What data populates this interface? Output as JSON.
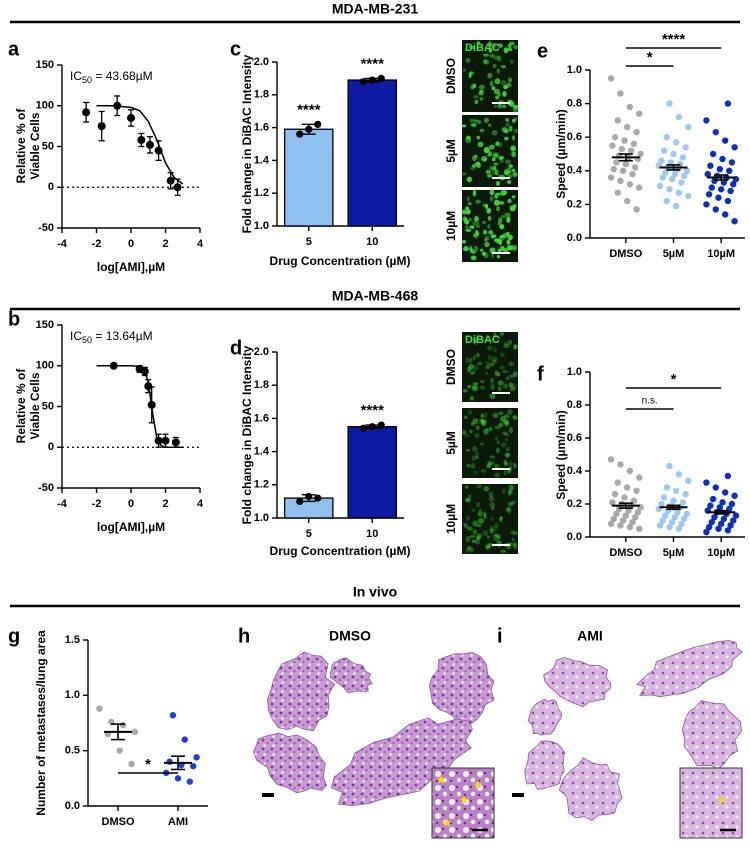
{
  "sections": [
    "MDA-MB-231",
    "MDA-MB-468",
    "In vivo"
  ],
  "chart_data": [
    {
      "panel": "a",
      "type": "dose_response",
      "y_label": [
        "Relative % of",
        "Viable Cells"
      ],
      "x_label": "log[AMI],µM",
      "ic50_label": [
        "IC",
        "50",
        " = 43.68µM"
      ],
      "xlim": [
        -4,
        4
      ],
      "xticks": [
        -4,
        -2,
        0,
        2,
        4
      ],
      "ylim": [
        -50,
        150
      ],
      "yticks": [
        -50,
        0,
        50,
        100,
        150
      ],
      "hline": 0,
      "points": {
        "x": [
          -2.6,
          -1.7,
          -0.8,
          0,
          0.6,
          1.1,
          1.6,
          2.3,
          2.7
        ],
        "y": [
          92,
          75,
          100,
          85,
          58,
          52,
          45,
          8,
          0
        ],
        "errors": [
          12,
          18,
          12,
          10,
          8,
          10,
          12,
          10,
          10
        ]
      },
      "curve": {
        "x": [
          -2,
          -1,
          0,
          0.5,
          1,
          1.5,
          2,
          2.5,
          3
        ],
        "y": [
          100,
          100,
          98,
          94,
          81,
          58,
          30,
          12,
          4
        ]
      }
    },
    {
      "panel": "c",
      "type": "bar",
      "y_label": "Fold change in DiBAC Intensity",
      "x_label": "Drug Concentration (µM)",
      "categories": [
        "5",
        "10"
      ],
      "values": [
        1.59,
        1.89
      ],
      "errors": [
        0.03,
        0.01
      ],
      "colors": [
        "#8fc0f0",
        "#0c1aa6"
      ],
      "points": [
        [
          1.56,
          1.59,
          1.62
        ],
        [
          1.88,
          1.89,
          1.9
        ]
      ],
      "annotations": [
        "****",
        "****"
      ],
      "ylim": [
        1,
        2
      ],
      "yticks": [
        {
          "value": 1,
          "label": "1.0"
        },
        1.2,
        1.4,
        1.6,
        1.8,
        {
          "value": 2,
          "label": "2.0"
        }
      ]
    },
    {
      "panel": "e",
      "type": "dot",
      "y_label": "Speed (µm/min)",
      "categories": [
        "DMSO",
        "5µM",
        "10µM"
      ],
      "colors": [
        "#a9a9a9",
        "#9cc8f2",
        "#0b2fbf"
      ],
      "points": [
        [
          0.95,
          0.86,
          0.78,
          0.74,
          0.7,
          0.66,
          0.63,
          0.6,
          0.58,
          0.56,
          0.55,
          0.53,
          0.52,
          0.5,
          0.49,
          0.48,
          0.47,
          0.45,
          0.44,
          0.42,
          0.41,
          0.4,
          0.38,
          0.36,
          0.34,
          0.32,
          0.3,
          0.27,
          0.22,
          0.17
        ],
        [
          0.8,
          0.72,
          0.66,
          0.6,
          0.57,
          0.54,
          0.52,
          0.5,
          0.48,
          0.46,
          0.45,
          0.44,
          0.43,
          0.42,
          0.41,
          0.4,
          0.39,
          0.38,
          0.37,
          0.36,
          0.35,
          0.33,
          0.31,
          0.29,
          0.27,
          0.25,
          0.22,
          0.19
        ],
        [
          0.8,
          0.7,
          0.63,
          0.58,
          0.54,
          0.5,
          0.47,
          0.45,
          0.43,
          0.41,
          0.4,
          0.38,
          0.37,
          0.36,
          0.35,
          0.34,
          0.33,
          0.32,
          0.3,
          0.29,
          0.28,
          0.26,
          0.24,
          0.22,
          0.2,
          0.17,
          0.14,
          0.1
        ]
      ],
      "means": [
        0.48,
        0.42,
        0.36
      ],
      "sems": [
        0.02,
        0.015,
        0.015
      ],
      "comparisons": [
        {
          "from": 0,
          "to": 1,
          "label": "*"
        },
        {
          "from": 0,
          "to": 2,
          "label": "****"
        }
      ],
      "ylim": [
        0,
        1
      ],
      "yticks": [
        {
          "value": 0,
          "label": "0.0"
        },
        0.2,
        0.4,
        0.6,
        0.8,
        {
          "value": 1,
          "label": "1.0"
        }
      ]
    },
    {
      "panel": "b",
      "type": "dose_response",
      "y_label": [
        "Relative % of",
        "Viable Cells"
      ],
      "x_label": "log[AMI],µM",
      "ic50_label": [
        "IC",
        "50",
        " = 13.64µM"
      ],
      "xlim": [
        -4,
        4
      ],
      "xticks": [
        -4,
        -2,
        0,
        2,
        4
      ],
      "ylim": [
        -50,
        150
      ],
      "yticks": [
        -50,
        0,
        50,
        100,
        150
      ],
      "hline": 0,
      "points": {
        "x": [
          -1,
          0.5,
          0.8,
          1,
          1.2,
          1.6,
          2,
          2.6
        ],
        "y": [
          100,
          96,
          93,
          75,
          52,
          8,
          8,
          6
        ],
        "errors": [
          0,
          4,
          5,
          8,
          22,
          8,
          8,
          6
        ]
      },
      "curve": {
        "x": [
          -2,
          0,
          0.5,
          0.75,
          1,
          1.25,
          1.5,
          1.75,
          2,
          3
        ],
        "y": [
          100,
          100,
          99,
          96,
          80,
          42,
          11,
          2,
          0,
          0
        ]
      }
    },
    {
      "panel": "d",
      "type": "bar",
      "y_label": "Fold change in DiBAC Intensity",
      "x_label": "Drug Concentration (µM)",
      "categories": [
        "5",
        "10"
      ],
      "values": [
        1.12,
        1.55
      ],
      "errors": [
        0.02,
        0.01
      ],
      "colors": [
        "#8fc0f0",
        "#0c1aa6"
      ],
      "points": [
        [
          1.1,
          1.13,
          1.12
        ],
        [
          1.54,
          1.55,
          1.56
        ]
      ],
      "annotations": [
        null,
        "****"
      ],
      "ylim": [
        1,
        2
      ],
      "yticks": [
        {
          "value": 1,
          "label": "1.0"
        },
        1.2,
        1.4,
        1.6,
        1.8,
        {
          "value": 2,
          "label": "2.0"
        }
      ]
    },
    {
      "panel": "f",
      "type": "dot",
      "y_label": "Speed (µm/min)",
      "categories": [
        "DMSO",
        "5µM",
        "10µM"
      ],
      "colors": [
        "#a9a9a9",
        "#9cc8f2",
        "#0b2fbf"
      ],
      "points": [
        [
          0.47,
          0.44,
          0.4,
          0.36,
          0.33,
          0.3,
          0.28,
          0.26,
          0.24,
          0.22,
          0.21,
          0.2,
          0.19,
          0.18,
          0.17,
          0.16,
          0.15,
          0.14,
          0.13,
          0.12,
          0.11,
          0.1,
          0.09,
          0.08,
          0.07,
          0.06,
          0.05
        ],
        [
          0.43,
          0.38,
          0.34,
          0.3,
          0.28,
          0.26,
          0.24,
          0.22,
          0.21,
          0.2,
          0.19,
          0.18,
          0.17,
          0.16,
          0.15,
          0.14,
          0.13,
          0.12,
          0.11,
          0.1,
          0.09,
          0.08,
          0.07,
          0.06,
          0.05
        ],
        [
          0.37,
          0.33,
          0.3,
          0.27,
          0.25,
          0.23,
          0.21,
          0.2,
          0.19,
          0.18,
          0.17,
          0.16,
          0.15,
          0.14,
          0.13,
          0.12,
          0.11,
          0.1,
          0.09,
          0.08,
          0.07,
          0.06,
          0.05,
          0.04,
          0.03
        ]
      ],
      "means": [
        0.19,
        0.18,
        0.15
      ],
      "sems": [
        0.015,
        0.012,
        0.01
      ],
      "comparisons": [
        {
          "from": 0,
          "to": 1,
          "label": "n.s."
        },
        {
          "from": 0,
          "to": 2,
          "label": "*"
        }
      ],
      "ylim": [
        0,
        1
      ],
      "yticks": [
        {
          "value": 0,
          "label": "0.0"
        },
        0.2,
        0.4,
        0.6,
        0.8,
        {
          "value": 1,
          "label": "1.0"
        }
      ]
    },
    {
      "panel": "g",
      "type": "dot",
      "y_label": "Number of metastases/lung area",
      "categories": [
        "DMSO",
        "AMI"
      ],
      "colors": [
        "#a9a9a9",
        "#1c3fe0"
      ],
      "points": [
        [
          0.88,
          0.76,
          0.73,
          0.67,
          0.65,
          0.5,
          0.38
        ],
        [
          0.82,
          0.6,
          0.44,
          0.4,
          0.37,
          0.36,
          0.3,
          0.25,
          0.22
        ]
      ],
      "means": [
        0.67,
        0.39
      ],
      "sems": [
        0.07,
        0.06
      ],
      "comparisons": [
        {
          "from": 0,
          "to": 1,
          "label": "*"
        }
      ],
      "ylim": [
        0,
        1.5
      ],
      "yticks": [
        {
          "value": 0,
          "label": "0.0"
        },
        0.5,
        {
          "value": 1,
          "label": "1.0"
        },
        1.5
      ]
    }
  ],
  "micrographs": [
    {
      "stain": "DiBAC",
      "labels": [
        "DMSO",
        "5µM",
        "10µM"
      ]
    },
    {
      "stain": "DiBAC",
      "labels": [
        "DMSO",
        "5µM",
        "10µM"
      ]
    }
  ],
  "histology": [
    {
      "panel": "h",
      "title": "DMSO"
    },
    {
      "panel": "i",
      "title": "AMI"
    }
  ]
}
